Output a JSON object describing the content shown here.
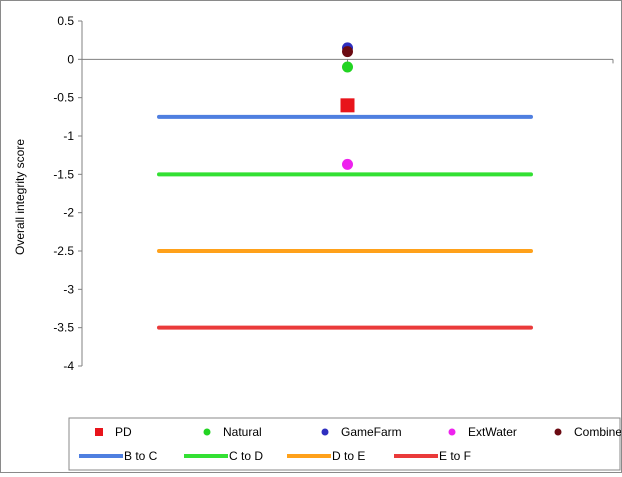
{
  "chart_data": {
    "type": "scatter",
    "title": "",
    "xlabel": "",
    "ylabel": "Overall integrity score",
    "ylim": [
      -4,
      0.5
    ],
    "yticks": [
      0.5,
      0,
      -0.5,
      -1,
      -1.5,
      -2,
      -2.5,
      -3,
      -3.5,
      -4
    ],
    "ytick_labels": [
      "0.5",
      "0",
      "-0.5",
      "-1",
      "-1.5",
      "-2",
      "-2.5",
      "-3",
      "-3.5",
      "-4"
    ],
    "x_categories": 2,
    "points": [
      {
        "name": "PD",
        "y": -0.6,
        "color": "#e8141b",
        "marker": "square"
      },
      {
        "name": "Natural",
        "y": -0.1,
        "color": "#22d422",
        "marker": "circle"
      },
      {
        "name": "GameFarm",
        "y": 0.15,
        "color": "#2e2ebf",
        "marker": "circle"
      },
      {
        "name": "ExtWater",
        "y": -1.37,
        "color": "#ee22ee",
        "marker": "circle"
      },
      {
        "name": "Combined",
        "y": 0.1,
        "color": "#6b0a12",
        "marker": "circle"
      }
    ],
    "thresholds": [
      {
        "name": "B to C",
        "y": -0.75,
        "color": "#4f7fe0"
      },
      {
        "name": "C to D",
        "y": -1.5,
        "color": "#33e033"
      },
      {
        "name": "D to E",
        "y": -2.5,
        "color": "#ffa11a"
      },
      {
        "name": "E to F",
        "y": -3.5,
        "color": "#ea3a3a"
      }
    ],
    "grid": false,
    "legend": "bottom"
  }
}
